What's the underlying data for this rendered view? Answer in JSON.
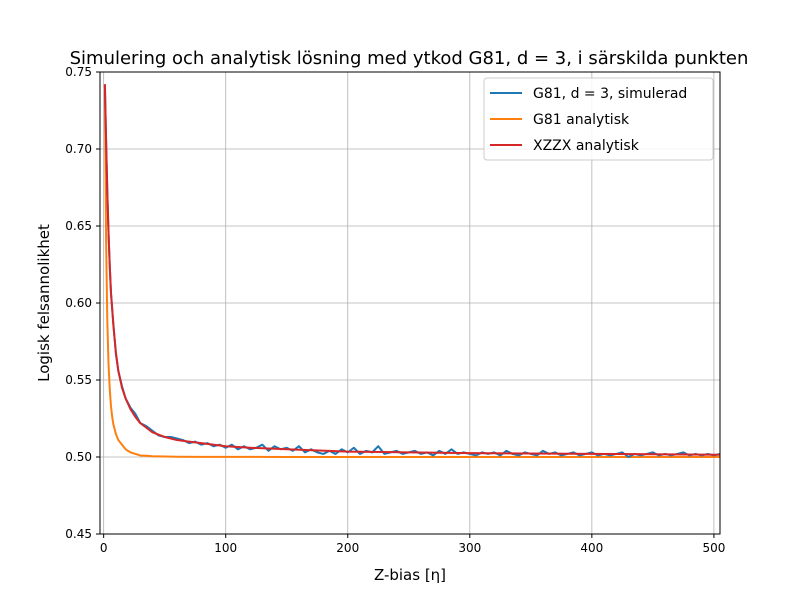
{
  "chart_data": {
    "type": "line",
    "title": "Simulering och analytisk lösning med ytkod G81, d = 3, i särskilda punkten",
    "xlabel": "Z-bias [η]",
    "ylabel": "Logisk felsannolikhet",
    "xlim": [
      -3,
      505
    ],
    "ylim": [
      0.45,
      0.75
    ],
    "xticks": [
      0,
      100,
      200,
      300,
      400,
      500
    ],
    "yticks": [
      0.45,
      0.5,
      0.55,
      0.6,
      0.65,
      0.7,
      0.75
    ],
    "xtick_labels": [
      "0",
      "100",
      "200",
      "300",
      "400",
      "500"
    ],
    "ytick_labels": [
      "0.45",
      "0.50",
      "0.55",
      "0.60",
      "0.65",
      "0.70",
      "0.75"
    ],
    "grid": true,
    "legend_position": "top-right",
    "series": [
      {
        "name": "G81,  d = 3, simulerad",
        "color": "#1f77b4",
        "linewidth": 2,
        "x": [
          1,
          2,
          3,
          4,
          5,
          6,
          8,
          10,
          12,
          15,
          18,
          22,
          26,
          30,
          35,
          40,
          45,
          50,
          55,
          60,
          65,
          70,
          75,
          80,
          85,
          90,
          95,
          100,
          105,
          110,
          115,
          120,
          125,
          130,
          135,
          140,
          145,
          150,
          155,
          160,
          165,
          170,
          175,
          180,
          185,
          190,
          195,
          200,
          205,
          210,
          215,
          220,
          225,
          230,
          235,
          240,
          245,
          250,
          255,
          260,
          265,
          270,
          275,
          280,
          285,
          290,
          295,
          300,
          305,
          310,
          315,
          320,
          325,
          330,
          335,
          340,
          345,
          350,
          355,
          360,
          365,
          370,
          375,
          380,
          385,
          390,
          395,
          400,
          405,
          410,
          415,
          420,
          425,
          430,
          435,
          440,
          445,
          450,
          455,
          460,
          465,
          470,
          475,
          480,
          485,
          490,
          495,
          500,
          505
        ],
        "y": [
          0.742,
          0.705,
          0.672,
          0.645,
          0.624,
          0.606,
          0.586,
          0.567,
          0.556,
          0.546,
          0.538,
          0.532,
          0.528,
          0.522,
          0.52,
          0.517,
          0.514,
          0.513,
          0.513,
          0.512,
          0.511,
          0.509,
          0.51,
          0.508,
          0.509,
          0.507,
          0.508,
          0.506,
          0.508,
          0.505,
          0.507,
          0.505,
          0.506,
          0.508,
          0.504,
          0.507,
          0.505,
          0.506,
          0.504,
          0.507,
          0.503,
          0.505,
          0.503,
          0.502,
          0.504,
          0.502,
          0.505,
          0.503,
          0.506,
          0.502,
          0.504,
          0.503,
          0.507,
          0.502,
          0.503,
          0.504,
          0.502,
          0.503,
          0.504,
          0.502,
          0.503,
          0.501,
          0.504,
          0.502,
          0.505,
          0.502,
          0.503,
          0.502,
          0.501,
          0.503,
          0.502,
          0.503,
          0.501,
          0.504,
          0.502,
          0.501,
          0.503,
          0.502,
          0.501,
          0.504,
          0.502,
          0.503,
          0.501,
          0.502,
          0.503,
          0.501,
          0.502,
          0.503,
          0.501,
          0.502,
          0.501,
          0.502,
          0.503,
          0.5,
          0.502,
          0.501,
          0.502,
          0.503,
          0.501,
          0.502,
          0.501,
          0.502,
          0.503,
          0.501,
          0.502,
          0.501,
          0.502,
          0.501,
          0.502
        ]
      },
      {
        "name": "G81 analytisk",
        "color": "#ff7f0e",
        "linewidth": 2,
        "x": [
          1,
          2,
          3,
          4,
          5,
          6,
          7,
          8,
          9,
          10,
          12,
          15,
          18,
          22,
          26,
          30,
          35,
          40,
          50,
          60,
          80,
          100,
          150,
          200,
          300,
          400,
          505
        ],
        "y": [
          0.742,
          0.64,
          0.588,
          0.56,
          0.544,
          0.533,
          0.526,
          0.521,
          0.518,
          0.515,
          0.511,
          0.508,
          0.505,
          0.503,
          0.502,
          0.501,
          0.5008,
          0.5005,
          0.5003,
          0.5002,
          0.5001,
          0.5001,
          0.5,
          0.5,
          0.5,
          0.5,
          0.5
        ]
      },
      {
        "name": "XZZX analytisk",
        "color": "#d62728",
        "linewidth": 2,
        "x": [
          1,
          2,
          3,
          4,
          5,
          6,
          8,
          10,
          12,
          15,
          18,
          22,
          26,
          30,
          35,
          40,
          50,
          60,
          70,
          80,
          100,
          120,
          150,
          200,
          250,
          300,
          400,
          505
        ],
        "y": [
          0.742,
          0.705,
          0.672,
          0.645,
          0.624,
          0.607,
          0.585,
          0.568,
          0.556,
          0.545,
          0.538,
          0.531,
          0.526,
          0.522,
          0.519,
          0.516,
          0.513,
          0.511,
          0.51,
          0.509,
          0.507,
          0.506,
          0.505,
          0.5035,
          0.503,
          0.5025,
          0.502,
          0.5015
        ]
      }
    ]
  }
}
